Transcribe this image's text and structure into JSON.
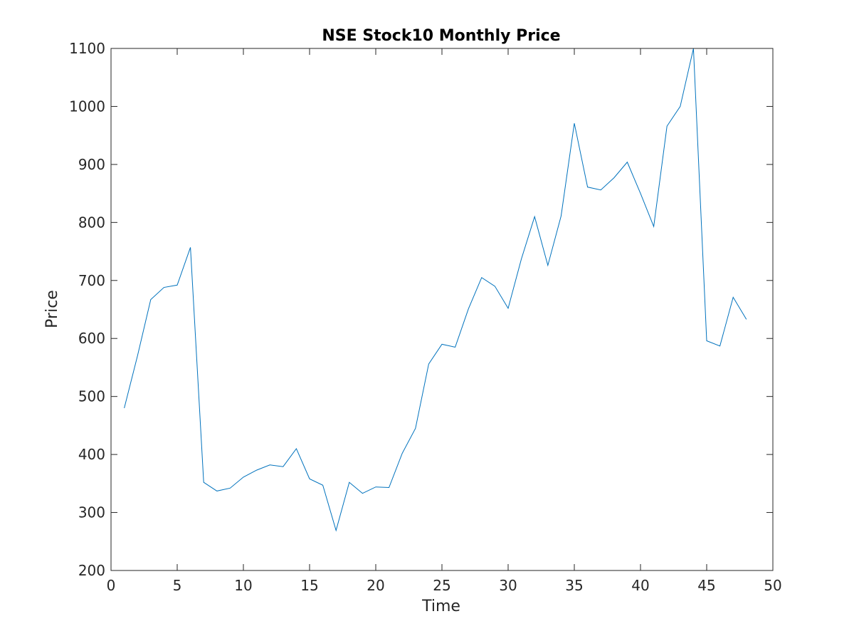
{
  "chart_data": {
    "type": "line",
    "title": "NSE Stock10 Monthly Price",
    "xlabel": "Time",
    "ylabel": "Price",
    "xlim": [
      0,
      50
    ],
    "ylim": [
      200,
      1100
    ],
    "xticks": [
      0,
      5,
      10,
      15,
      20,
      25,
      30,
      35,
      40,
      45,
      50
    ],
    "yticks": [
      200,
      300,
      400,
      500,
      600,
      700,
      800,
      900,
      1000,
      1100
    ],
    "grid": false,
    "line_color": "#0072BD",
    "series": [
      {
        "x": [
          1,
          2,
          3,
          4,
          5,
          6,
          7,
          8,
          9,
          10,
          11,
          12,
          13,
          14,
          15,
          16,
          17,
          18,
          19,
          20,
          21,
          22,
          23,
          24,
          25,
          26,
          27,
          28,
          29,
          30,
          31,
          32,
          33,
          34,
          35,
          36,
          37,
          38,
          39,
          40,
          41,
          42,
          43,
          44,
          45,
          46,
          47,
          48
        ],
        "values": [
          480,
          570,
          667,
          688,
          692,
          757,
          352,
          337,
          342,
          361,
          373,
          382,
          379,
          410,
          358,
          347,
          269,
          352,
          333,
          344,
          343,
          402,
          445,
          556,
          590,
          585,
          651,
          705,
          690,
          652,
          737,
          810,
          726,
          811,
          971,
          861,
          856,
          877,
          904,
          850,
          793,
          966,
          1000,
          1100,
          596,
          587,
          671,
          633
        ]
      }
    ]
  }
}
